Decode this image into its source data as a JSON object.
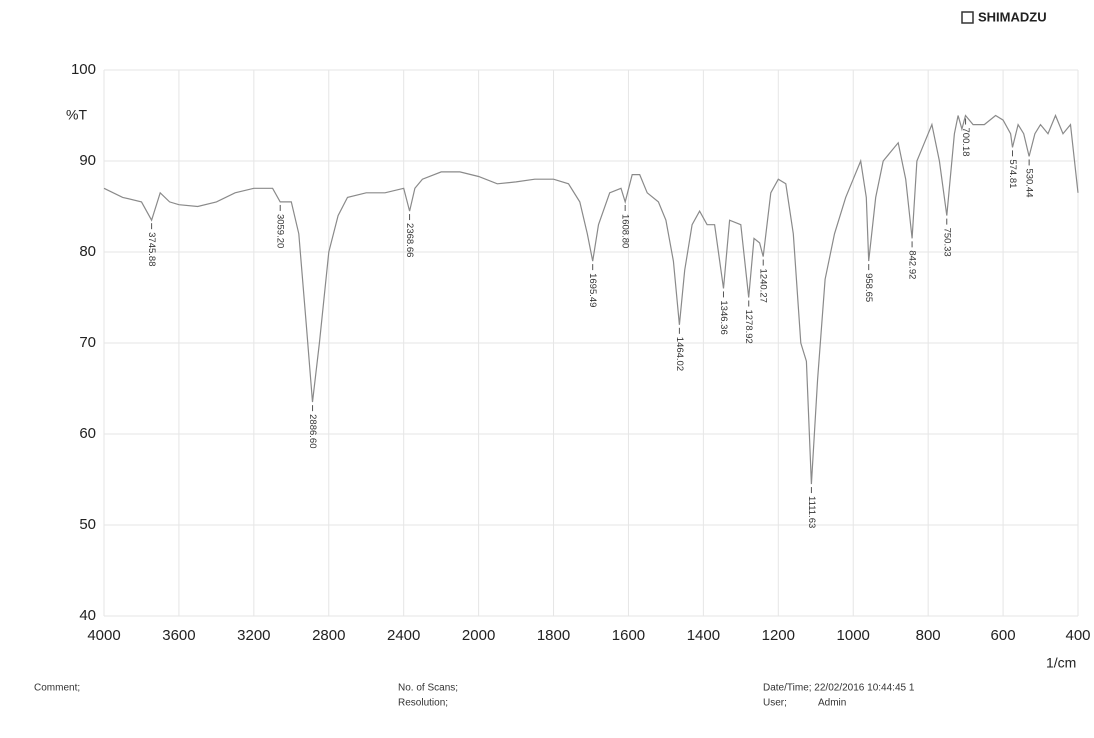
{
  "chart_data": {
    "type": "line",
    "brand": "SHIMADZU",
    "y_label": "%T",
    "x_label": "1/cm",
    "xlim": [
      4000,
      400
    ],
    "ylim": [
      40,
      100
    ],
    "xticks": [
      4000,
      3600,
      3200,
      2800,
      2400,
      2000,
      1800,
      1600,
      1400,
      1200,
      1000,
      800,
      600,
      400
    ],
    "yticks": [
      40,
      50,
      60,
      70,
      80,
      90,
      100
    ],
    "grid": true,
    "series": [
      {
        "color": "#8a8a8a",
        "x": [
          4000,
          3900,
          3800,
          3745.88,
          3700,
          3650,
          3600,
          3500,
          3400,
          3300,
          3200,
          3100,
          3059.2,
          3000,
          2960,
          2920,
          2886.6,
          2850,
          2800,
          2750,
          2700,
          2600,
          2500,
          2400,
          2368.66,
          2340,
          2300,
          2200,
          2100,
          2000,
          1950,
          1900,
          1850,
          1800,
          1760,
          1730,
          1710,
          1695.49,
          1680,
          1650,
          1620,
          1608.8,
          1590,
          1570,
          1550,
          1520,
          1500,
          1480,
          1464.02,
          1450,
          1430,
          1410,
          1390,
          1370,
          1346.36,
          1330,
          1300,
          1278.92,
          1265,
          1250,
          1240.27,
          1220,
          1200,
          1180,
          1160,
          1140,
          1125,
          1111.63,
          1095,
          1075,
          1050,
          1020,
          1000,
          980,
          965,
          958.65,
          940,
          920,
          880,
          860,
          842.92,
          830,
          810,
          790,
          770,
          750.33,
          730,
          720,
          710,
          700.18,
          680,
          650,
          620,
          600,
          580,
          574.81,
          560,
          545,
          530.44,
          515,
          500,
          480,
          460,
          440,
          420,
          400
        ],
        "values": [
          87,
          86,
          85.5,
          83.5,
          86.5,
          85.5,
          85.2,
          85,
          85.5,
          86.5,
          87,
          87,
          85.5,
          85.5,
          82,
          72,
          63.5,
          70,
          80,
          84,
          86,
          86.5,
          86.5,
          87,
          84.5,
          87,
          88,
          88.8,
          88.8,
          88.3,
          87.5,
          87.7,
          88,
          88,
          87.5,
          85.5,
          82,
          79,
          83,
          86.5,
          87,
          85.5,
          88.5,
          88.5,
          86.5,
          85.5,
          83.5,
          79,
          72,
          78,
          83,
          84.5,
          83,
          83,
          76,
          83.5,
          83,
          75,
          81.5,
          81,
          79.5,
          86.5,
          88,
          87.5,
          82,
          70,
          68,
          54.5,
          66,
          77,
          82,
          86,
          88,
          90,
          86,
          79,
          86,
          90,
          92,
          88,
          81.5,
          90,
          92,
          94,
          90,
          84,
          93,
          95,
          93.5,
          95,
          94,
          94,
          95,
          94.5,
          93,
          91.5,
          94,
          93,
          90.5,
          93,
          94,
          93,
          95,
          93,
          94,
          86.5
        ]
      }
    ],
    "annotations": [
      {
        "x": 3745.88,
        "y": 83.5,
        "label": "3745.88"
      },
      {
        "x": 3059.2,
        "y": 85.5,
        "label": "3059.20"
      },
      {
        "x": 2886.6,
        "y": 63.5,
        "label": "2886.60"
      },
      {
        "x": 2368.66,
        "y": 84.5,
        "label": "2368.66"
      },
      {
        "x": 1695.49,
        "y": 79,
        "label": "1695.49"
      },
      {
        "x": 1608.8,
        "y": 85.5,
        "label": "1608.80"
      },
      {
        "x": 1464.02,
        "y": 72,
        "label": "1464.02"
      },
      {
        "x": 1346.36,
        "y": 76,
        "label": "1346.36"
      },
      {
        "x": 1278.92,
        "y": 75,
        "label": "1278.92"
      },
      {
        "x": 1240.27,
        "y": 79.5,
        "label": "1240.27"
      },
      {
        "x": 1111.63,
        "y": 54.5,
        "label": "1111.63"
      },
      {
        "x": 958.65,
        "y": 79,
        "label": "958.65"
      },
      {
        "x": 842.92,
        "y": 81.5,
        "label": "842.92"
      },
      {
        "x": 750.33,
        "y": 84,
        "label": "750.33"
      },
      {
        "x": 700.18,
        "y": 95,
        "label": "700.18"
      },
      {
        "x": 574.81,
        "y": 91.5,
        "label": "574.81"
      },
      {
        "x": 530.44,
        "y": 90.5,
        "label": "530.44"
      }
    ]
  },
  "footer": {
    "comment": "Comment;",
    "scans": "No. of Scans;",
    "resolution": "Resolution;",
    "datetime": "Date/Time; 22/02/2016 10:44:45 1",
    "user": "User;",
    "user_name": "Admin"
  }
}
